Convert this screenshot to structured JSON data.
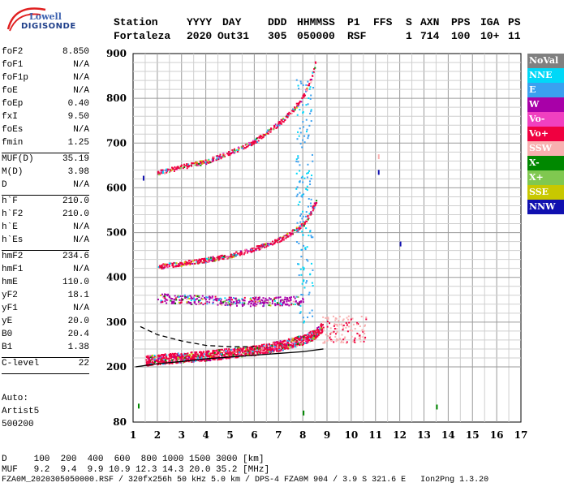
{
  "logo": {
    "line1": "Lowell",
    "line2": "DIGISONDE"
  },
  "header": {
    "labels": [
      "Station",
      "YYYY",
      "DAY",
      "DDD",
      "HHMMSS",
      "P1",
      "FFS",
      "S",
      "AXN",
      "PPS",
      "IGA",
      "PS"
    ],
    "values": [
      "Fortaleza",
      "2020",
      "Out31",
      "305",
      "050000",
      "RSF",
      "1",
      "714",
      "100",
      "10+",
      "11"
    ]
  },
  "params": {
    "group1": [
      {
        "label": "foF2",
        "value": "8.850"
      },
      {
        "label": "foF1",
        "value": "N/A"
      },
      {
        "label": "foF1p",
        "value": "N/A"
      },
      {
        "label": "foE",
        "value": "N/A"
      },
      {
        "label": "foEp",
        "value": "0.40"
      },
      {
        "label": "fxI",
        "value": "9.50"
      },
      {
        "label": "foEs",
        "value": "N/A"
      },
      {
        "label": "fmin",
        "value": "1.25"
      }
    ],
    "group2": [
      {
        "label": "MUF(D)",
        "value": "35.19"
      },
      {
        "label": "M(D)",
        "value": "3.98"
      },
      {
        "label": "D",
        "value": "N/A"
      }
    ],
    "group3": [
      {
        "label": "h`F",
        "value": "210.0"
      },
      {
        "label": "h`F2",
        "value": "210.0"
      },
      {
        "label": "h`E",
        "value": "N/A"
      },
      {
        "label": "h`Es",
        "value": "N/A"
      }
    ],
    "group4": [
      {
        "label": "hmF2",
        "value": "234.6"
      },
      {
        "label": "hmF1",
        "value": "N/A"
      },
      {
        "label": "hmE",
        "value": "110.0"
      },
      {
        "label": "yF2",
        "value": "18.1"
      },
      {
        "label": "yF1",
        "value": "N/A"
      },
      {
        "label": "yE",
        "value": "20.0"
      },
      {
        "label": "B0",
        "value": "20.4"
      },
      {
        "label": "B1",
        "value": "1.38"
      }
    ],
    "group5": [
      {
        "label": "C-level",
        "value": "22"
      }
    ]
  },
  "auto": {
    "line1": "Auto:",
    "line2": "Artist5",
    "line3": "500200"
  },
  "legend": [
    {
      "label": "NoVal",
      "color": "#808080"
    },
    {
      "label": "NNE",
      "color": "#00d8f8"
    },
    {
      "label": "E",
      "color": "#3aa0f0"
    },
    {
      "label": "W",
      "color": "#a800a8"
    },
    {
      "label": "Vo-",
      "color": "#f040c0"
    },
    {
      "label": "Vo+",
      "color": "#f00040"
    },
    {
      "label": "SSW",
      "color": "#f8b0b0"
    },
    {
      "label": "X-",
      "color": "#008800"
    },
    {
      "label": "X+",
      "color": "#80c850"
    },
    {
      "label": "SSE",
      "color": "#c8c800"
    },
    {
      "label": "NNW",
      "color": "#1010b0"
    }
  ],
  "footer": {
    "d_row": "D     100  200  400  600  800 1000 1500 3000 [km]",
    "muf_row": "MUF   9.2  9.4  9.9 10.9 12.3 14.3 20.0 35.2 [MHz]",
    "file_row": "FZA0M_2020305050000.RSF / 320fx256h 50 kHz 5.0 km / DPS-4 FZA0M 904 / 3.9 S 321.6 E   Ion2Png 1.3.20"
  },
  "chart_data": {
    "type": "scatter",
    "x": {
      "min": 1,
      "max": 17,
      "ticks": [
        1,
        2,
        3,
        4,
        5,
        6,
        7,
        8,
        9,
        10,
        11,
        12,
        13,
        14,
        15,
        16,
        17
      ],
      "unit": "MHz"
    },
    "y": {
      "min": 80,
      "max": 900,
      "ticks": [
        80,
        200,
        300,
        400,
        500,
        600,
        700,
        800,
        900
      ],
      "unit": "km"
    },
    "grid": true,
    "legend_position": "right",
    "traces": [
      {
        "name": "O-trace F2 1st hop",
        "color_key": "Vo+",
        "points": [
          [
            1.5,
            215
          ],
          [
            2,
            218
          ],
          [
            3,
            222
          ],
          [
            4,
            226
          ],
          [
            5,
            232
          ],
          [
            6,
            238
          ],
          [
            7,
            248
          ],
          [
            7.5,
            255
          ],
          [
            8,
            262
          ],
          [
            8.5,
            275
          ],
          [
            8.8,
            290
          ]
        ]
      },
      {
        "name": "F2 2nd hop",
        "color_key": "Vo+",
        "points": [
          [
            2,
            425
          ],
          [
            3,
            432
          ],
          [
            4,
            440
          ],
          [
            5,
            450
          ],
          [
            6,
            465
          ],
          [
            7,
            485
          ],
          [
            7.5,
            500
          ],
          [
            8,
            520
          ],
          [
            8.3,
            545
          ],
          [
            8.6,
            580
          ]
        ]
      },
      {
        "name": "F2 3rd hop",
        "color_key": "Vo+",
        "points": [
          [
            2,
            635
          ],
          [
            3,
            648
          ],
          [
            4,
            660
          ],
          [
            5,
            680
          ],
          [
            6,
            705
          ],
          [
            6.5,
            725
          ],
          [
            7,
            745
          ],
          [
            7.5,
            770
          ],
          [
            8,
            805
          ],
          [
            8.3,
            840
          ],
          [
            8.5,
            880
          ]
        ]
      },
      {
        "name": "Sporadic W band",
        "color_key": "W",
        "points": [
          [
            2,
            355
          ],
          [
            3,
            352
          ],
          [
            4,
            350
          ],
          [
            5,
            348
          ],
          [
            6,
            347
          ],
          [
            7,
            348
          ],
          [
            8,
            350
          ]
        ]
      }
    ],
    "profile_line": [
      [
        1.1,
        200
      ],
      [
        2,
        207
      ],
      [
        3,
        212
      ],
      [
        4,
        218
      ],
      [
        5,
        222
      ],
      [
        6,
        226
      ],
      [
        7,
        230
      ],
      [
        8,
        234
      ],
      [
        8.85,
        240
      ]
    ],
    "dashed_line": [
      [
        1.3,
        290
      ],
      [
        2,
        272
      ],
      [
        3,
        258
      ],
      [
        4,
        248
      ],
      [
        5,
        245
      ],
      [
        6,
        245
      ]
    ],
    "misc_points": [
      {
        "x": 1.4,
        "y": 627,
        "color_key": "NNW"
      },
      {
        "x": 11.1,
        "y": 675,
        "color_key": "SSW"
      },
      {
        "x": 11.1,
        "y": 640,
        "color_key": "NNW"
      },
      {
        "x": 12.0,
        "y": 480,
        "color_key": "NNW"
      },
      {
        "x": 13.5,
        "y": 118,
        "color_key": "X-"
      },
      {
        "x": 1.2,
        "y": 120,
        "color_key": "X-"
      },
      {
        "x": 8.0,
        "y": 105,
        "color_key": "X-"
      }
    ]
  }
}
